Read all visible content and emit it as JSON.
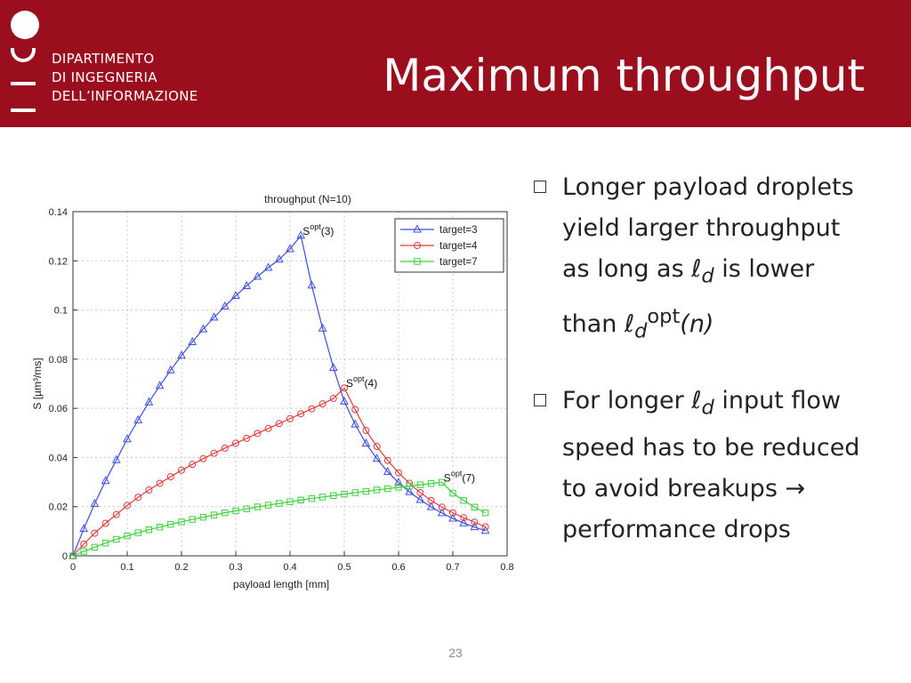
{
  "header": {
    "department_lines": [
      "DIPARTIMENTO",
      "DI INGEGNERIA",
      "DELL’INFORMAZIONE"
    ],
    "title": "Maximum throughput",
    "background": "#9b0e1e"
  },
  "bullets": [
    {
      "line1": "Longer payload droplets",
      "line2": "yield larger throughput",
      "line3_prefix": "as long as ",
      "sym_l": "ℓ",
      "sub_d": "d",
      "line3_suffix": " is lower",
      "line4_prefix": "than ",
      "sup_opt": "opt",
      "line4_suffix": "(n)"
    },
    {
      "line1_prefix": "For longer ",
      "sym_l": "ℓ",
      "sub_d": "d",
      "line1_suffix": " input flow",
      "line2": "speed has to be reduced",
      "line3": "to avoid breakups →",
      "line4": "performance drops"
    }
  ],
  "page_number": "23",
  "chart_data": {
    "type": "line",
    "title": "throughput (N=10)",
    "xlabel": "payload length [mm]",
    "ylabel": "S [µm³/ms]",
    "xlim": [
      0,
      0.8
    ],
    "ylim": [
      0,
      0.14
    ],
    "xticks": [
      "0",
      "0.1",
      "0.2",
      "0.3",
      "0.4",
      "0.5",
      "0.6",
      "0.7",
      "0.8"
    ],
    "yticks": [
      "0",
      "0.02",
      "0.04",
      "0.06",
      "0.08",
      "0.1",
      "0.12",
      "0.14"
    ],
    "grid": true,
    "legend_position": "top-right",
    "series": [
      {
        "name": "target=3",
        "color": "#3b4fe0",
        "marker": "triangle",
        "x": [
          0,
          0.02,
          0.04,
          0.06,
          0.08,
          0.1,
          0.12,
          0.14,
          0.16,
          0.18,
          0.2,
          0.22,
          0.24,
          0.26,
          0.28,
          0.3,
          0.32,
          0.34,
          0.36,
          0.38,
          0.4,
          0.42,
          0.44,
          0.46,
          0.48,
          0.5,
          0.52,
          0.54,
          0.56,
          0.58,
          0.6,
          0.62,
          0.64,
          0.66,
          0.68,
          0.7,
          0.72,
          0.74,
          0.76
        ],
        "y": [
          0,
          0.011,
          0.0212,
          0.0305,
          0.039,
          0.0475,
          0.0552,
          0.0625,
          0.0692,
          0.0755,
          0.0815,
          0.087,
          0.0922,
          0.097,
          0.1015,
          0.1058,
          0.1098,
          0.1136,
          0.1172,
          0.1206,
          0.1248,
          0.1303,
          0.11,
          0.0925,
          0.0765,
          0.0628,
          0.0535,
          0.0457,
          0.0395,
          0.0342,
          0.0298,
          0.026,
          0.0228,
          0.0199,
          0.0174,
          0.0152,
          0.0133,
          0.0117,
          0.0102
        ]
      },
      {
        "name": "target=4",
        "color": "#e03b3b",
        "marker": "circle",
        "x": [
          0,
          0.02,
          0.04,
          0.06,
          0.08,
          0.1,
          0.12,
          0.14,
          0.16,
          0.18,
          0.2,
          0.22,
          0.24,
          0.26,
          0.28,
          0.3,
          0.32,
          0.34,
          0.36,
          0.38,
          0.4,
          0.42,
          0.44,
          0.46,
          0.48,
          0.5,
          0.52,
          0.54,
          0.56,
          0.58,
          0.6,
          0.62,
          0.64,
          0.66,
          0.68,
          0.7,
          0.72,
          0.74,
          0.76
        ],
        "y": [
          0,
          0.0048,
          0.0092,
          0.0132,
          0.0168,
          0.0205,
          0.0238,
          0.0268,
          0.0295,
          0.0322,
          0.0348,
          0.0372,
          0.0395,
          0.0417,
          0.0438,
          0.0458,
          0.0478,
          0.0498,
          0.0518,
          0.0538,
          0.0558,
          0.0578,
          0.0598,
          0.0618,
          0.064,
          0.0683,
          0.0595,
          0.051,
          0.0445,
          0.0388,
          0.0338,
          0.0295,
          0.0257,
          0.0225,
          0.0198,
          0.0175,
          0.0155,
          0.0137,
          0.0118
        ]
      },
      {
        "name": "target=7",
        "color": "#3bd03b",
        "marker": "square",
        "x": [
          0,
          0.02,
          0.04,
          0.06,
          0.08,
          0.1,
          0.12,
          0.14,
          0.16,
          0.18,
          0.2,
          0.22,
          0.24,
          0.26,
          0.28,
          0.3,
          0.32,
          0.34,
          0.36,
          0.38,
          0.4,
          0.42,
          0.44,
          0.46,
          0.48,
          0.5,
          0.52,
          0.54,
          0.56,
          0.58,
          0.6,
          0.62,
          0.64,
          0.66,
          0.68,
          0.7,
          0.72,
          0.74,
          0.76
        ],
        "y": [
          0,
          0.0018,
          0.0035,
          0.0052,
          0.0067,
          0.0081,
          0.0094,
          0.0106,
          0.0117,
          0.0128,
          0.0138,
          0.0148,
          0.0157,
          0.0166,
          0.0175,
          0.0183,
          0.0191,
          0.0199,
          0.0206,
          0.0213,
          0.022,
          0.0227,
          0.0233,
          0.0239,
          0.0245,
          0.0251,
          0.0257,
          0.0262,
          0.0268,
          0.0273,
          0.0279,
          0.0284,
          0.0289,
          0.0294,
          0.0299,
          0.0255,
          0.0225,
          0.0198,
          0.0175
        ]
      }
    ],
    "annotations": [
      {
        "label": "S",
        "sup": "opt",
        "suffix": "(3)",
        "x": 0.42,
        "y": 0.1303
      },
      {
        "label": "S",
        "sup": "opt",
        "suffix": "(4)",
        "x": 0.5,
        "y": 0.0683
      },
      {
        "label": "S",
        "sup": "opt",
        "suffix": "(7)",
        "x": 0.68,
        "y": 0.0299
      }
    ]
  }
}
